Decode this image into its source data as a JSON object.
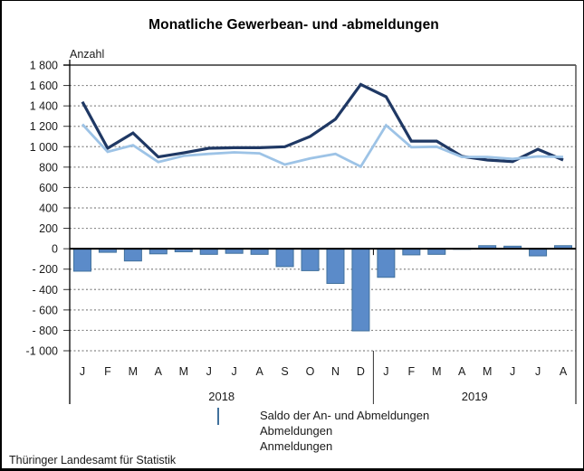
{
  "title": "Monatliche Gewerbean- und -abmeldungen",
  "footer": "Thüringer Landesamt für Statistik",
  "colors": {
    "bar_fill": "#5b8bc9",
    "bar_border": "#41719c",
    "abmeldungen_line": "#1f3864",
    "anmeldungen_line": "#9dc3e6",
    "grid": "#888888",
    "axis": "#000000",
    "plot_top_border": "#666666"
  },
  "chart_data": {
    "type": "combo-bar-line",
    "title": "Monatliche Gewerbean- und -abmeldungen",
    "ylabel": "Anzahl",
    "xlabel": "",
    "ylim": [
      -1000,
      1800
    ],
    "ytick_step": 200,
    "grid": "horizontal-dashed",
    "legend_position": "bottom-center",
    "categories": [
      "J",
      "F",
      "M",
      "A",
      "M",
      "J",
      "J",
      "A",
      "S",
      "O",
      "N",
      "D",
      "J",
      "F",
      "M",
      "A",
      "M",
      "J",
      "J",
      "A"
    ],
    "year_groups": [
      {
        "label": "2018",
        "span": 12
      },
      {
        "label": "2019",
        "span": 8
      }
    ],
    "ytick_values": [
      1800,
      1600,
      1400,
      1200,
      1000,
      800,
      600,
      400,
      200,
      0,
      -200,
      -400,
      -600,
      -800,
      -1000
    ],
    "ytick_labels": [
      "1 800",
      "1 600",
      "1 400",
      "1 200",
      "1 000",
      "800",
      "600",
      "400",
      "200",
      "0",
      "- 200",
      "- 400",
      "- 600",
      "- 800",
      "-1 000"
    ],
    "series": [
      {
        "name": "Saldo der An- und Abmeldungen",
        "type": "bar",
        "color": "#5b8bc9",
        "border_color": "#41719c",
        "values": [
          -220,
          -35,
          -120,
          -50,
          -30,
          -55,
          -45,
          -55,
          -175,
          -215,
          -340,
          -805,
          -280,
          -60,
          -55,
          -5,
          30,
          25,
          -70,
          30
        ]
      },
      {
        "name": "Abmeldungen",
        "type": "line",
        "color": "#1f3864",
        "values": [
          1440,
          985,
          1135,
          900,
          940,
          985,
          990,
          990,
          1000,
          1100,
          1270,
          1610,
          1490,
          1055,
          1055,
          905,
          870,
          855,
          975,
          870
        ]
      },
      {
        "name": "Anmeldungen",
        "type": "line",
        "color": "#9dc3e6",
        "values": [
          1220,
          950,
          1015,
          850,
          910,
          930,
          945,
          935,
          825,
          885,
          930,
          805,
          1210,
          995,
          1000,
          900,
          900,
          880,
          905,
          900
        ]
      }
    ]
  }
}
